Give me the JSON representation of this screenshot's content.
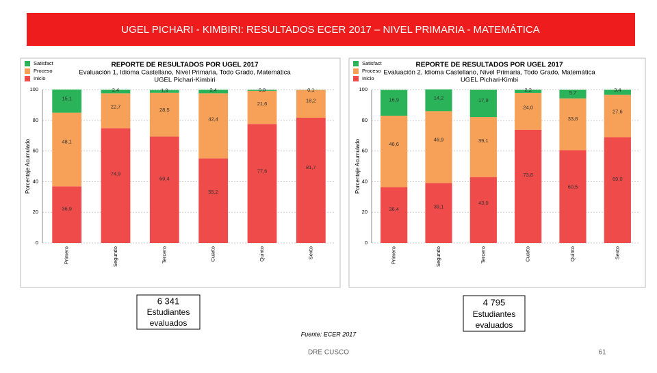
{
  "slide": {
    "title": "UGEL PICHARI - KIMBIRI: RESULTADOS ECER 2017 – NIVEL PRIMARIA - MATEMÁTICA",
    "count1": "6 341",
    "count1_label": "Estudiantes evaluados",
    "count2": "4 795",
    "count2_label": "Estudiantes evaluados",
    "source": "Fuente: ECER 2017",
    "footer": "DRE CUSCO",
    "page": "61"
  },
  "chart_data": [
    {
      "type": "stacked-bar",
      "title": "REPORTE DE RESULTADOS POR UGEL 2017",
      "subtitle": "Evaluación 1, Idioma Castellano, Nivel Primaria, Todo Grado, Matemática",
      "subtitle2": "UGEL Pichari-Kimbiri",
      "y_label": "Porcentaje Acumulado",
      "categories": [
        "Primero",
        "Segundo",
        "Tercero",
        "Cuarto",
        "Quinto",
        "Sexto"
      ],
      "series": [
        {
          "name": "Satisfact",
          "color": "#2bb35a",
          "values": [
            15.1,
            2.4,
            1.9,
            2.4,
            0.8,
            0.1
          ],
          "value_labels": [
            "15,1",
            "2,4",
            "1,9",
            "2,4",
            "0,8",
            "0,1"
          ]
        },
        {
          "name": "Proceso",
          "color": "#f7a058",
          "values": [
            48.1,
            22.7,
            28.5,
            42.4,
            21.6,
            18.2
          ],
          "value_labels": [
            "48,1",
            "22,7",
            "28,5",
            "42,4",
            "21,6",
            "18,2"
          ]
        },
        {
          "name": "Inicio",
          "color": "#f04b4b",
          "values": [
            36.9,
            74.9,
            69.4,
            55.2,
            77.6,
            81.7
          ],
          "value_labels": [
            "36,9",
            "74,9",
            "69,4",
            "55,2",
            "77,6",
            "81,7"
          ]
        }
      ],
      "ylim": [
        0,
        100
      ],
      "yticks": [
        0,
        20,
        40,
        60,
        80,
        100
      ],
      "grid": true
    },
    {
      "type": "stacked-bar",
      "title": "REPORTE DE RESULTADOS POR UGEL 2017",
      "subtitle": "Evaluación 2, Idioma Castellano, Nivel Primaria, Todo Grado, Matemática",
      "subtitle2": "UGEL Pichari-Kimbi",
      "y_label": "Porcentaje Acumulado",
      "categories": [
        "Primero",
        "Segundo",
        "Tercero",
        "Cuarto",
        "Quinto",
        "Sexto"
      ],
      "series": [
        {
          "name": "Satisfact",
          "color": "#2bb35a",
          "values": [
            16.9,
            14.2,
            17.9,
            2.2,
            5.7,
            3.4
          ],
          "value_labels": [
            "16,9",
            "14,2",
            "17,9",
            "2,2",
            "5,7",
            "3,4"
          ]
        },
        {
          "name": "Proceso",
          "color": "#f7a058",
          "values": [
            46.6,
            46.9,
            39.1,
            24.0,
            33.8,
            27.6
          ],
          "value_labels": [
            "46,6",
            "46,9",
            "39,1",
            "24,0",
            "33,8",
            "27,6"
          ]
        },
        {
          "name": "Inicio",
          "color": "#f04b4b",
          "values": [
            36.4,
            39.1,
            43.0,
            73.8,
            60.5,
            69.0
          ],
          "value_labels": [
            "36,4",
            "39,1",
            "43,0",
            "73,8",
            "60,5",
            "69,0"
          ]
        }
      ],
      "ylim": [
        0,
        100
      ],
      "yticks": [
        0,
        20,
        40,
        60,
        80,
        100
      ],
      "grid": true
    }
  ]
}
